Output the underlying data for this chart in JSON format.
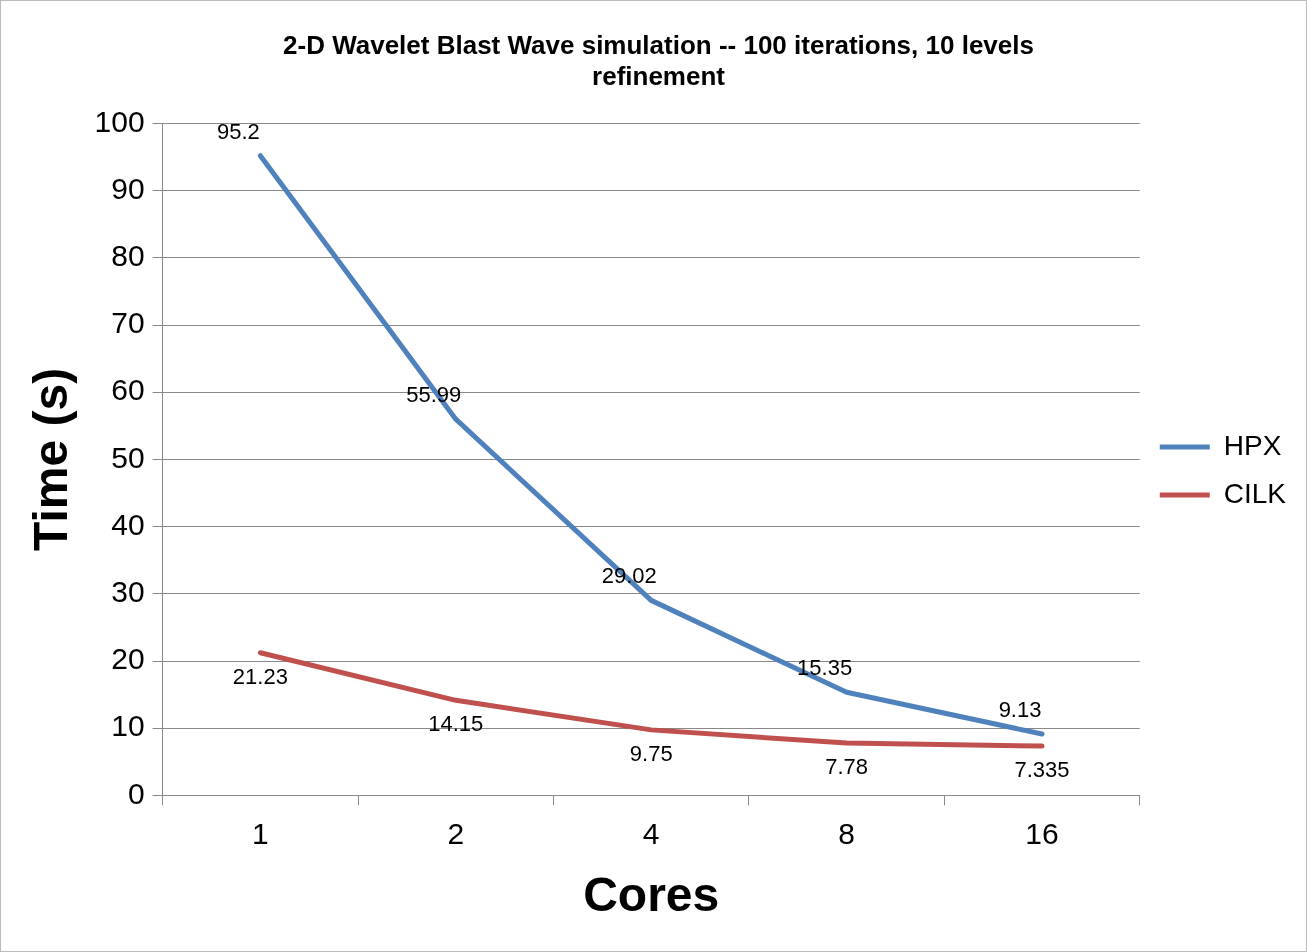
{
  "chart_data": {
    "type": "line",
    "title": "2-D Wavelet Blast Wave simulation -- 100 iterations, 10 levels refinement",
    "xlabel": "Cores",
    "ylabel": "Time (s)",
    "categories": [
      "1",
      "2",
      "4",
      "8",
      "16"
    ],
    "series": [
      {
        "name": "HPX",
        "color": "#4f81bd",
        "values": [
          95.2,
          55.99,
          29.02,
          15.35,
          9.13
        ]
      },
      {
        "name": "CILK",
        "color": "#c0504d",
        "values": [
          21.23,
          14.15,
          9.75,
          7.78,
          7.335
        ]
      }
    ],
    "ylim": [
      0,
      100
    ],
    "yticks": [
      0,
      10,
      20,
      30,
      40,
      50,
      60,
      70,
      80,
      90,
      100
    ],
    "grid": "y",
    "legend": "right",
    "marker": "none",
    "line_style": "solid",
    "data_labels": true
  }
}
